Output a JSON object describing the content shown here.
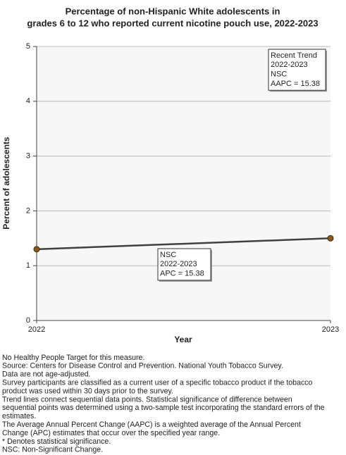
{
  "chart_data": {
    "type": "line",
    "title": [
      "Percentage of non-Hispanic White adolescents in",
      "grades 6 to 12 who reported current nicotine pouch use, 2022-2023"
    ],
    "x_label": "Year",
    "y_label": "Percent of adolescents",
    "x": [
      2022,
      2023
    ],
    "series": [
      {
        "color": "#404040",
        "marker_color": "#8b5a1b",
        "values": [
          1.3,
          1.5
        ]
      }
    ],
    "xlim": [
      2022,
      2023
    ],
    "xticks": [
      2022,
      2023
    ],
    "ylim": [
      0,
      5
    ],
    "yticks": [
      0,
      1,
      2,
      3,
      4,
      5
    ],
    "grid": true,
    "annotations": [
      {
        "lines": [
          "Recent Trend",
          "2022-2023",
          "NSC",
          "AAPC = 15.38"
        ]
      },
      {
        "lines": [
          "NSC",
          "2022-2023",
          "APC = 15.38"
        ]
      }
    ],
    "notes": [
      "No Healthy People Target for this measure.",
      "Source: Centers for Disease Control and Prevention. National Youth Tobacco Survey.",
      "Data are not age-adjusted.",
      "Survey participants are classified as a current user of a specific tobacco product if the tobacco",
      "product was used within 30 days prior to the survey.",
      "Trend lines connect sequential data points. Statistical significance of difference between",
      "sequential points was determined using a two-sample test incorporating the standard errors of the",
      "estimates.",
      "The Average Annual Percent Change (AAPC) is a weighted average of the Annual Percent",
      "Change (APC) estimates that occur over the specified year range.",
      "* Denotes statistical significance.",
      "NSC: Non-Significant Change."
    ]
  }
}
